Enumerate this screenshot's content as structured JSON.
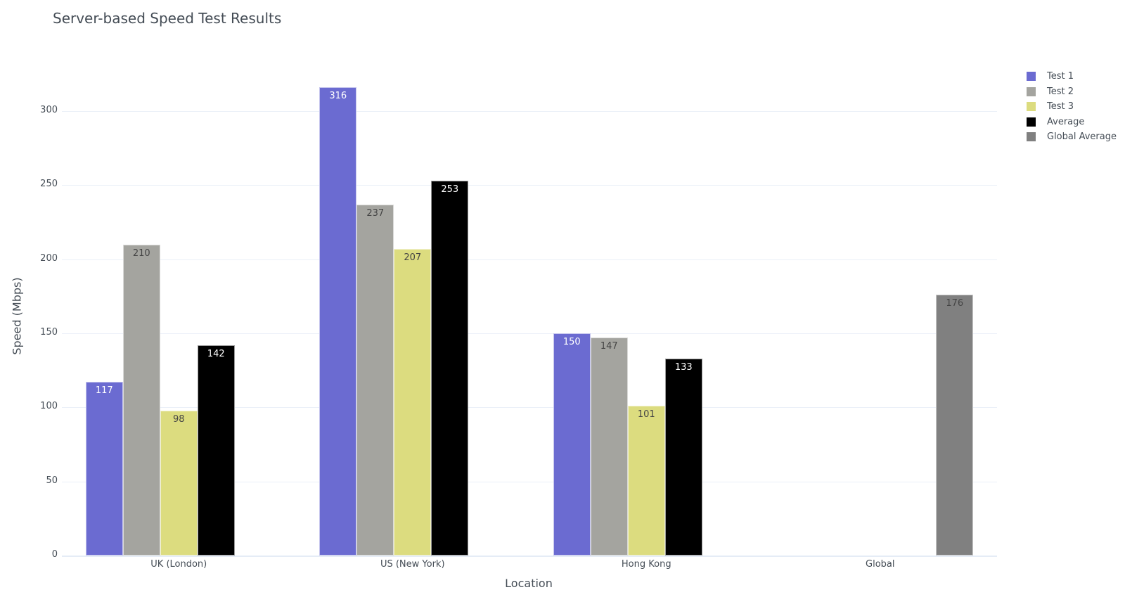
{
  "title": "Server-based Speed Test Results",
  "chart_data": {
    "type": "bar",
    "title": "Server-based Speed Test Results",
    "xlabel": "Location",
    "ylabel": "Speed (Mbps)",
    "ylim": [
      0,
      335
    ],
    "yticks": [
      0,
      50,
      100,
      150,
      200,
      250,
      300
    ],
    "grid": true,
    "legend_position": "top-right",
    "categories": [
      "UK (London)",
      "US (New York)",
      "Hong Kong",
      "Global"
    ],
    "series": [
      {
        "name": "Test 1",
        "color": "#6b6bd1",
        "label_color": "#ffffff",
        "values": [
          117,
          316,
          150,
          null
        ]
      },
      {
        "name": "Test 2",
        "color": "#a4a49f",
        "label_color": "#444444",
        "values": [
          210,
          237,
          147,
          null
        ]
      },
      {
        "name": "Test 3",
        "color": "#dcdc7f",
        "label_color": "#444444",
        "values": [
          98,
          207,
          101,
          null
        ]
      },
      {
        "name": "Average",
        "color": "#000000",
        "label_color": "#ffffff",
        "values": [
          142,
          253,
          133,
          null
        ]
      },
      {
        "name": "Global Average",
        "color": "#808080",
        "label_color": "#444444",
        "values": [
          null,
          null,
          null,
          176
        ]
      }
    ]
  }
}
